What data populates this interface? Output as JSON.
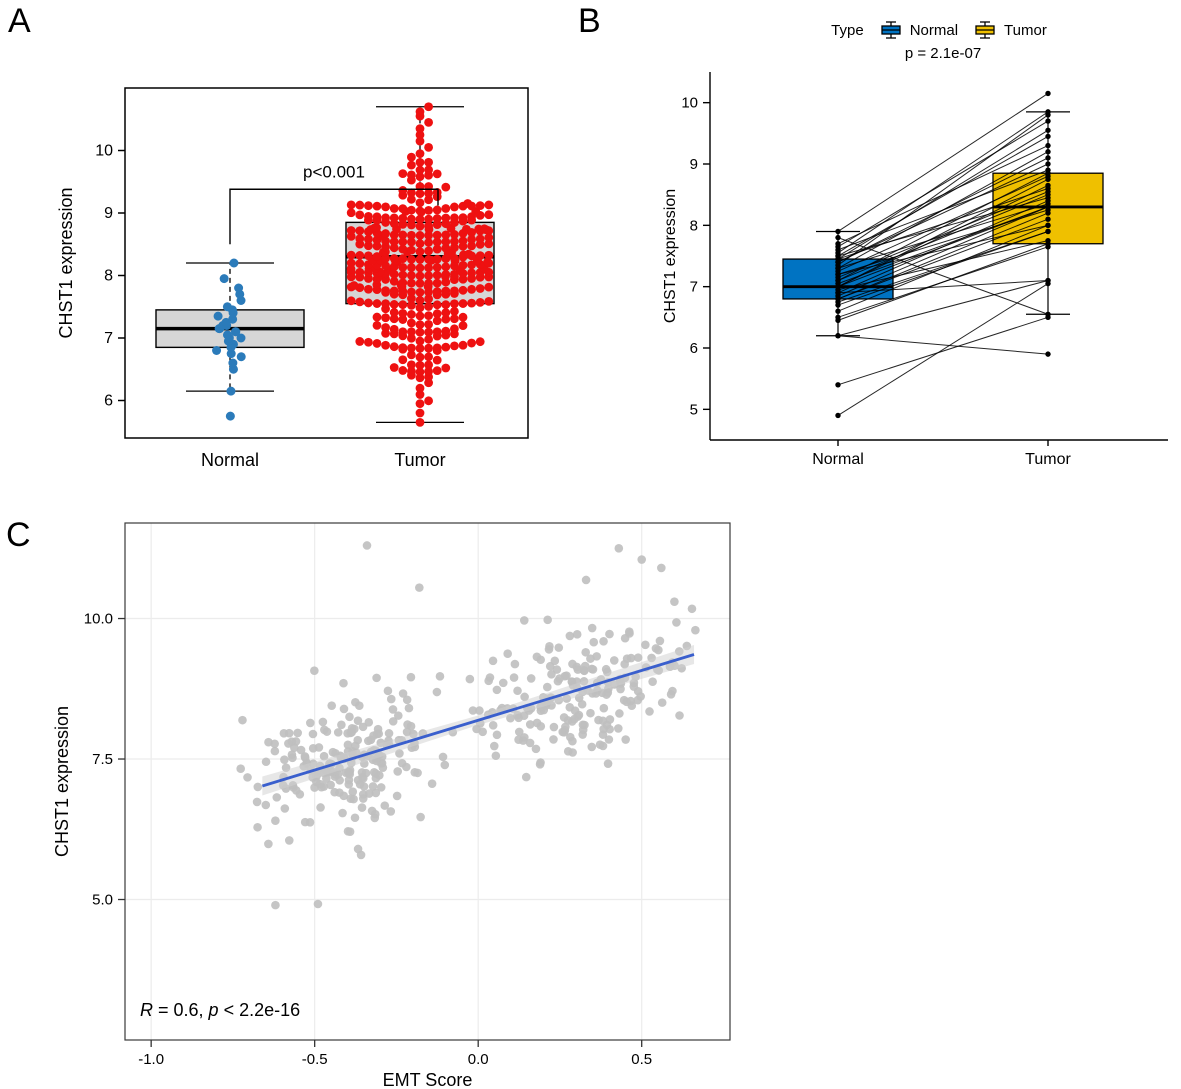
{
  "figure": {
    "panels": [
      {
        "label": "A"
      },
      {
        "label": "B"
      },
      {
        "label": "C"
      }
    ]
  },
  "chart_data": [
    {
      "id": "A",
      "type": "box_jitter",
      "ylabel": "CHST1 expression",
      "categories": [
        "Normal",
        "Tumor"
      ],
      "yticks": [
        6,
        7,
        8,
        9,
        10
      ],
      "ylim": [
        5.4,
        11.0
      ],
      "annotation": "p<0.001",
      "box_fill": "#d6d6d6",
      "groups": [
        {
          "name": "Normal",
          "point_color": "#2b7bba",
          "box": {
            "median": 7.15,
            "q1": 6.85,
            "q3": 7.45,
            "whisker_low": 6.15,
            "whisker_high": 8.2
          },
          "points": [
            5.75,
            6.15,
            6.5,
            6.6,
            6.7,
            6.75,
            6.8,
            6.85,
            6.9,
            6.95,
            7.0,
            7.0,
            7.05,
            7.1,
            7.1,
            7.15,
            7.15,
            7.2,
            7.2,
            7.25,
            7.3,
            7.35,
            7.4,
            7.45,
            7.5,
            7.6,
            7.7,
            7.8,
            7.95,
            8.2
          ],
          "jitter_seed": 11
        },
        {
          "name": "Tumor",
          "point_color": "#ee1111",
          "box": {
            "median": 8.3,
            "q1": 7.55,
            "q3": 8.85,
            "whisker_low": 5.65,
            "whisker_high": 10.7
          },
          "points_generated": {
            "n": 360,
            "seed": 42,
            "min": 5.65,
            "max": 10.7,
            "mixture": [
              {
                "weight": 0.75,
                "mean": 8.45,
                "sd": 0.62
              },
              {
                "weight": 0.25,
                "mean": 7.05,
                "sd": 0.45
              }
            ],
            "extra": [
              5.65,
              5.8,
              5.95,
              9.95,
              10.05,
              10.15,
              10.25,
              10.35,
              10.45,
              10.55,
              10.62,
              10.7
            ]
          }
        }
      ]
    },
    {
      "id": "B",
      "type": "paired_box",
      "ylabel": "CHST1 expression",
      "categories": [
        "Normal",
        "Tumor"
      ],
      "yticks": [
        5,
        6,
        7,
        8,
        9,
        10
      ],
      "ylim": [
        4.5,
        10.5
      ],
      "annotation": "p = 2.1e-07",
      "legend": {
        "title": "Type",
        "items": [
          {
            "label": "Normal",
            "color": "#0073C2"
          },
          {
            "label": "Tumor",
            "color": "#EFC000"
          }
        ]
      },
      "boxes": [
        {
          "name": "Normal",
          "color": "#0073C2",
          "median": 7.0,
          "q1": 6.8,
          "q3": 7.45,
          "whisker_low": 6.2,
          "whisker_high": 7.9
        },
        {
          "name": "Tumor",
          "color": "#EFC000",
          "median": 8.3,
          "q1": 7.7,
          "q3": 8.85,
          "whisker_low": 6.55,
          "whisker_high": 9.85
        }
      ],
      "pairs": [
        [
          6.9,
          7.1
        ],
        [
          5.4,
          6.5
        ],
        [
          7.2,
          8.0
        ],
        [
          6.2,
          5.9
        ],
        [
          6.45,
          7.7
        ],
        [
          7.0,
          8.3
        ],
        [
          7.3,
          9.2
        ],
        [
          4.9,
          7.05
        ],
        [
          7.45,
          8.6
        ],
        [
          6.75,
          7.9
        ],
        [
          7.5,
          8.45
        ],
        [
          7.35,
          9.8
        ],
        [
          6.8,
          8.2
        ],
        [
          6.2,
          7.1
        ],
        [
          7.1,
          8.85
        ],
        [
          7.55,
          9.85
        ],
        [
          6.85,
          8.3
        ],
        [
          6.5,
          7.65
        ],
        [
          7.6,
          8.9
        ],
        [
          7.9,
          10.15
        ],
        [
          6.6,
          8.0
        ],
        [
          7.0,
          8.75
        ],
        [
          7.4,
          9.1
        ],
        [
          6.7,
          7.9
        ],
        [
          7.15,
          8.55
        ],
        [
          7.8,
          6.55
        ],
        [
          7.05,
          8.3
        ],
        [
          7.65,
          9.7
        ],
        [
          6.8,
          8.1
        ],
        [
          6.9,
          8.4
        ],
        [
          7.7,
          9.3
        ],
        [
          7.25,
          8.8
        ],
        [
          6.95,
          7.75
        ],
        [
          7.5,
          9.45
        ],
        [
          7.2,
          8.25
        ],
        [
          7.0,
          8.65
        ],
        [
          7.4,
          9.0
        ],
        [
          7.3,
          8.35
        ],
        [
          7.45,
          9.55
        ],
        [
          7.1,
          8.5
        ]
      ]
    },
    {
      "id": "C",
      "type": "scatter",
      "xlabel": "EMT Score",
      "ylabel": "CHST1 expression",
      "xticks": [
        {
          "v": -1.0,
          "label": "-1.0"
        },
        {
          "v": -0.5,
          "label": "-0.5"
        },
        {
          "v": 0.0,
          "label": "0.0"
        },
        {
          "v": 0.5,
          "label": "0.5"
        }
      ],
      "yticks": [
        {
          "v": 5.0,
          "label": "5.0"
        },
        {
          "v": 7.5,
          "label": "7.5"
        },
        {
          "v": 10.0,
          "label": "10.0"
        }
      ],
      "xlim": [
        -1.08,
        0.77
      ],
      "ylim": [
        2.5,
        11.7
      ],
      "annotation_parts": [
        {
          "text": "R",
          "italic": true
        },
        {
          "text": " = 0.6, ",
          "italic": false
        },
        {
          "text": "p",
          "italic": true
        },
        {
          "text": " < 2.2e-16",
          "italic": false
        }
      ],
      "point_color": "#bfbfbf",
      "line_color": "#3A5FCD",
      "band_color": "#d0d0d0",
      "grid_color": "#ececec",
      "regression": {
        "x1": -0.66,
        "y1": 7.02,
        "x2": 0.66,
        "y2": 9.36
      },
      "points_generated": {
        "seed": 7,
        "x_min": -0.74,
        "x_max": 0.68,
        "y_min": 4.85,
        "y_max": 11.35,
        "slope": 1.77,
        "intercept": 8.16,
        "y_noise_sd": 0.55,
        "clusters": [
          {
            "n": 215,
            "x_mean": -0.38,
            "x_sd": 0.14
          },
          {
            "n": 200,
            "x_mean": 0.33,
            "x_sd": 0.16
          }
        ]
      },
      "extra_points": [
        [
          -0.62,
          4.9
        ],
        [
          -0.49,
          4.92
        ],
        [
          -0.34,
          11.3
        ],
        [
          0.43,
          11.25
        ],
        [
          0.5,
          11.05
        ],
        [
          -0.18,
          10.55
        ],
        [
          0.56,
          10.9
        ],
        [
          0.6,
          10.3
        ]
      ]
    }
  ]
}
